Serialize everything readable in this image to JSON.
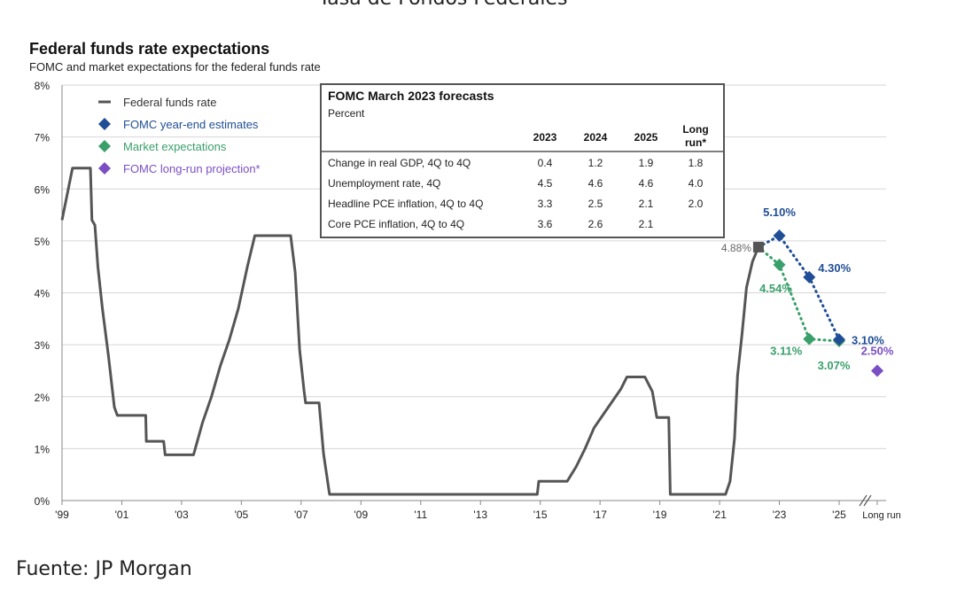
{
  "header": {
    "title": "Tasa de Fondos Federales"
  },
  "footer": {
    "label": "Fuente:",
    "source": "JP Morgan"
  },
  "chart_data": {
    "type": "line",
    "title": "Federal funds rate expectations",
    "subtitle": "FOMC and market expectations for the federal funds rate",
    "ylim": [
      0,
      8
    ],
    "yticks": [
      "0%",
      "1%",
      "2%",
      "3%",
      "4%",
      "5%",
      "6%",
      "7%",
      "8%"
    ],
    "xticks": [
      {
        "x": 1999,
        "label": "'99"
      },
      {
        "x": 2001,
        "label": "'01"
      },
      {
        "x": 2003,
        "label": "'03"
      },
      {
        "x": 2005,
        "label": "'05"
      },
      {
        "x": 2007,
        "label": "'07"
      },
      {
        "x": 2009,
        "label": "'09"
      },
      {
        "x": 2011,
        "label": "'11"
      },
      {
        "x": 2013,
        "label": "'13"
      },
      {
        "x": 2015,
        "label": "'15"
      },
      {
        "x": 2017,
        "label": "'17"
      },
      {
        "x": 2019,
        "label": "'19"
      },
      {
        "x": 2021,
        "label": "'21"
      },
      {
        "x": 2023,
        "label": "'23"
      },
      {
        "x": 2025,
        "label": "'25"
      }
    ],
    "long_run_label": "Long run",
    "grid": true,
    "legend_position": "top-left",
    "colors": {
      "fed": "#555555",
      "fomc": "#1f4e96",
      "market": "#3aa06b",
      "longrun": "#7b4fc4"
    },
    "series": [
      {
        "name": "Federal funds rate",
        "points": [
          [
            1999,
            5.4
          ],
          [
            1999.35,
            6.4
          ],
          [
            1999.95,
            6.4
          ],
          [
            2000,
            5.4
          ],
          [
            2000.1,
            5.3
          ],
          [
            2000.2,
            4.5
          ],
          [
            2000.35,
            3.7
          ],
          [
            2000.55,
            2.8
          ],
          [
            2000.75,
            1.8
          ],
          [
            2000.85,
            1.64
          ],
          [
            2001.8,
            1.64
          ],
          [
            2001.82,
            1.14
          ],
          [
            2002.4,
            1.14
          ],
          [
            2002.45,
            0.88
          ],
          [
            2003.4,
            0.88
          ],
          [
            2003.7,
            1.5
          ],
          [
            2004.0,
            2.0
          ],
          [
            2004.3,
            2.6
          ],
          [
            2004.6,
            3.1
          ],
          [
            2004.9,
            3.7
          ],
          [
            2005.2,
            4.5
          ],
          [
            2005.45,
            5.1
          ],
          [
            2006.65,
            5.1
          ],
          [
            2006.8,
            4.4
          ],
          [
            2006.95,
            2.9
          ],
          [
            2007.1,
            2.1
          ],
          [
            2007.15,
            1.88
          ],
          [
            2007.6,
            1.88
          ],
          [
            2007.75,
            0.9
          ],
          [
            2007.95,
            0.12
          ],
          [
            2014.9,
            0.12
          ],
          [
            2014.95,
            0.37
          ],
          [
            2015.9,
            0.37
          ],
          [
            2016.2,
            0.65
          ],
          [
            2016.5,
            1.0
          ],
          [
            2016.8,
            1.4
          ],
          [
            2017.1,
            1.65
          ],
          [
            2017.4,
            1.9
          ],
          [
            2017.7,
            2.15
          ],
          [
            2017.9,
            2.38
          ],
          [
            2018.5,
            2.38
          ],
          [
            2018.75,
            2.1
          ],
          [
            2018.9,
            1.6
          ],
          [
            2019.3,
            1.6
          ],
          [
            2019.35,
            0.12
          ],
          [
            2021.2,
            0.12
          ],
          [
            2021.35,
            0.37
          ],
          [
            2021.5,
            1.2
          ],
          [
            2021.6,
            2.4
          ],
          [
            2021.75,
            3.2
          ],
          [
            2021.9,
            4.1
          ],
          [
            2022.1,
            4.6
          ],
          [
            2022.3,
            4.88
          ]
        ]
      },
      {
        "name": "FOMC year-end estimates",
        "points": [
          [
            2023,
            5.1
          ],
          [
            2024,
            4.3
          ],
          [
            2025,
            3.1
          ]
        ],
        "labels": [
          "5.10%",
          "4.30%",
          "3.10%"
        ]
      },
      {
        "name": "Market expectations",
        "points": [
          [
            2023,
            4.54
          ],
          [
            2024,
            3.11
          ],
          [
            2025,
            3.07
          ]
        ],
        "labels": [
          "4.54%",
          "3.11%",
          "3.07%"
        ]
      },
      {
        "name": "FOMC long-run projection*",
        "points": [
          [
            "Long run",
            2.5
          ]
        ],
        "labels": [
          "2.50%"
        ]
      }
    ],
    "annotations": [
      {
        "label": "4.88%",
        "x": 2022.3,
        "y": 4.88
      }
    ],
    "table": {
      "title": "FOMC March 2023 forecasts",
      "subtitle": "Percent",
      "columns": [
        "2023",
        "2024",
        "2025",
        "Long run*"
      ],
      "rows": [
        {
          "label": "Change in real GDP, 4Q to 4Q",
          "values": [
            "0.4",
            "1.2",
            "1.9",
            "1.8"
          ]
        },
        {
          "label": "Unemployment rate, 4Q",
          "values": [
            "4.5",
            "4.6",
            "4.6",
            "4.0"
          ]
        },
        {
          "label": "Headline PCE inflation, 4Q to 4Q",
          "values": [
            "3.3",
            "2.5",
            "2.1",
            "2.0"
          ]
        },
        {
          "label": "Core PCE inflation, 4Q to 4Q",
          "values": [
            "3.6",
            "2.6",
            "2.1",
            ""
          ]
        }
      ]
    }
  }
}
